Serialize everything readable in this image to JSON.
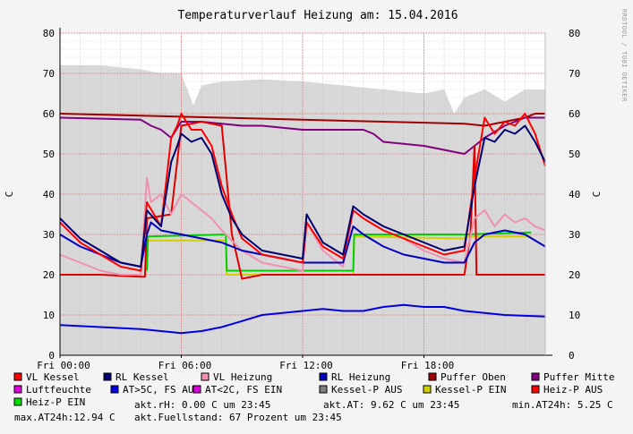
{
  "chart_data": {
    "type": "line",
    "title": "Temperaturverlauf Heizung am: 15.04.2016",
    "ylabel_left": "C",
    "ylabel_right": "C",
    "watermark": "RRDTOOL / TOBI OETIKER",
    "ylim": [
      0,
      80
    ],
    "y_ticks": [
      "0",
      "10",
      "20",
      "30",
      "40",
      "50",
      "60",
      "70",
      "80"
    ],
    "xlim_hours": [
      0,
      24
    ],
    "x_ticks": [
      {
        "h": 0,
        "label": "Fri 00:00"
      },
      {
        "h": 6,
        "label": "Fri 06:00"
      },
      {
        "h": 12,
        "label": "Fri 12:00"
      },
      {
        "h": 18,
        "label": "Fri 18:00"
      }
    ],
    "area": {
      "name": "Luftfeuchte",
      "color": "#d8d8d8",
      "x": [
        0,
        1,
        2,
        3,
        4,
        5,
        6,
        6.3,
        6.6,
        7,
        8,
        10,
        12,
        14,
        16,
        18,
        19,
        19.5,
        20,
        21,
        22,
        23,
        24
      ],
      "y": [
        72,
        72,
        72,
        71.5,
        71,
        70,
        70,
        66,
        62,
        67,
        68,
        68.5,
        68,
        67,
        66,
        65,
        66,
        60,
        64,
        66,
        63,
        66,
        66
      ]
    },
    "series": [
      {
        "name": "Puffer Oben",
        "color": "#a00000",
        "width": 2,
        "x": [
          0,
          4,
          8,
          12,
          16,
          20,
          21,
          22,
          23,
          23.5,
          24
        ],
        "y": [
          60,
          59.5,
          59,
          58.5,
          58,
          57.5,
          57,
          58,
          59,
          60,
          60
        ]
      },
      {
        "name": "Puffer Mitte",
        "color": "#800080",
        "width": 2,
        "x": [
          0,
          4,
          4.5,
          5,
          5.5,
          6,
          7,
          8,
          9,
          10,
          12,
          14,
          15,
          15.5,
          16,
          18,
          20,
          20.5,
          21,
          22,
          23,
          24
        ],
        "y": [
          59,
          58.5,
          57,
          56,
          54,
          58,
          58,
          57.5,
          57,
          57,
          56,
          56,
          56,
          55,
          53,
          52,
          50,
          52,
          54,
          57,
          59,
          59
        ]
      },
      {
        "name": "Kessel-P EIN",
        "color": "#d0d000",
        "width": 2,
        "x": [
          4.3,
          4.35,
          8.2,
          8.25,
          14.5,
          14.55,
          20,
          20.05,
          23.3
        ],
        "y": [
          21,
          28.5,
          28.5,
          20,
          20,
          29.5,
          29,
          29.5,
          29.5
        ]
      },
      {
        "name": "Heiz-P EIN",
        "color": "#00d000",
        "width": 2,
        "x": [
          4.3,
          4.35,
          8.2,
          8.25,
          14.5,
          14.55,
          20,
          20.05,
          23.3
        ],
        "y": [
          21,
          29.5,
          30,
          21,
          21,
          30,
          30,
          30,
          30.5
        ]
      },
      {
        "name": "Heiz-P AUS",
        "color": "#e00000",
        "width": 2,
        "x": [
          0,
          2,
          4,
          4.2,
          4.3,
          5.5,
          6,
          7,
          8,
          8.5,
          9,
          10,
          12,
          14,
          15,
          15.5,
          16,
          18,
          20,
          20.3,
          20.5,
          20.6,
          23.5,
          24
        ],
        "y": [
          20,
          20,
          19.5,
          19.5,
          34,
          35,
          57,
          58,
          57,
          30,
          19,
          20,
          20,
          20,
          20,
          20,
          20,
          20,
          20,
          30,
          52,
          20,
          20,
          20
        ]
      },
      {
        "name": "VL Heizung",
        "color": "#f090b0",
        "width": 2,
        "x": [
          0,
          1,
          2,
          3,
          4,
          4.3,
          4.5,
          5,
          5.5,
          6,
          6.5,
          7,
          7.5,
          8,
          9,
          10,
          11,
          12,
          12.2,
          13,
          14,
          14.5,
          15,
          16,
          17,
          18,
          19,
          20,
          20.5,
          21,
          21.5,
          22,
          22.5,
          23,
          23.5,
          24
        ],
        "y": [
          25,
          23,
          21,
          20,
          20,
          44,
          38,
          40,
          35,
          40,
          38,
          36,
          34,
          31,
          26,
          23,
          22,
          21,
          33,
          26,
          22,
          36,
          34,
          31,
          29,
          26,
          24,
          23,
          34,
          36,
          32,
          35,
          33,
          34,
          32,
          31
        ]
      },
      {
        "name": "RL Heizung",
        "color": "#0000c0",
        "width": 2,
        "x": [
          0,
          1,
          2,
          3,
          4,
          4.3,
          4.5,
          5,
          6,
          7,
          8,
          8.5,
          9,
          10,
          11,
          12,
          13,
          14,
          14.5,
          15,
          16,
          17,
          18,
          19,
          20,
          20.5,
          21,
          22,
          23,
          24
        ],
        "y": [
          30,
          27,
          25,
          23,
          22,
          30,
          33,
          31,
          30,
          29,
          28,
          27,
          26,
          25,
          24,
          23,
          23,
          23,
          32,
          30,
          27,
          25,
          24,
          23,
          23,
          28,
          30,
          31,
          30,
          27
        ]
      },
      {
        "name": "VL Kessel",
        "color": "#ff0000",
        "width": 2,
        "x": [
          0,
          1,
          2,
          3,
          4,
          4.3,
          5,
          5.5,
          5.8,
          6,
          6.5,
          7,
          7.5,
          8,
          8.5,
          9,
          10,
          11,
          12,
          12.2,
          13,
          14,
          14.5,
          15,
          16,
          17,
          18,
          19,
          20,
          20.5,
          21,
          21.5,
          22,
          22.5,
          23,
          23.5,
          24
        ],
        "y": [
          33,
          28,
          25,
          22,
          21,
          38,
          32,
          54,
          57,
          60,
          56,
          56,
          52,
          42,
          35,
          29,
          25,
          24,
          23,
          33,
          27,
          24,
          36,
          34,
          31,
          29,
          27,
          25,
          26,
          44,
          59,
          55,
          58,
          57,
          60,
          55,
          47
        ]
      },
      {
        "name": "RL Kessel",
        "color": "#000070",
        "width": 2,
        "x": [
          0,
          1,
          2,
          3,
          4,
          4.3,
          5,
          5.5,
          5.8,
          6,
          6.5,
          7,
          7.5,
          8,
          8.5,
          9,
          10,
          11,
          12,
          12.2,
          13,
          14,
          14.5,
          15,
          16,
          17,
          18,
          19,
          20,
          20.5,
          21,
          21.5,
          22,
          22.5,
          23,
          23.5,
          24
        ],
        "y": [
          34,
          29,
          26,
          23,
          22,
          36,
          32,
          48,
          52,
          55,
          53,
          54,
          50,
          40,
          34,
          30,
          26,
          25,
          24,
          35,
          28,
          25,
          37,
          35,
          32,
          30,
          28,
          26,
          27,
          42,
          54,
          53,
          56,
          55,
          57,
          53,
          48
        ]
      },
      {
        "name": "AT>5C, FS AUS",
        "color": "#0000e0",
        "width": 2,
        "x": [
          0,
          2,
          4,
          5,
          6,
          7,
          8,
          9,
          10,
          11,
          12,
          13,
          14,
          15,
          16,
          17,
          18,
          19,
          20,
          21,
          22,
          23,
          24
        ],
        "y": [
          7.5,
          7,
          6.5,
          6,
          5.5,
          6,
          7,
          8.5,
          10,
          10.5,
          11,
          11.5,
          11,
          11,
          12,
          12.5,
          12,
          12,
          11,
          10.5,
          10,
          9.8,
          9.6
        ]
      }
    ],
    "legend": [
      {
        "label": "VL Kessel",
        "color": "#ff0000"
      },
      {
        "label": "RL Kessel",
        "color": "#000070"
      },
      {
        "label": "VL Heizung",
        "color": "#f090b0"
      },
      {
        "label": "RL Heizung",
        "color": "#0000c0"
      },
      {
        "label": "Puffer Oben",
        "color": "#a00000"
      },
      {
        "label": "Puffer Mitte",
        "color": "#800080"
      },
      {
        "label": "Luftfeuchte",
        "color": "#e000e0"
      },
      {
        "label": "AT>5C, FS AUS",
        "color": "#0000e0"
      },
      {
        "label": "AT<2C, FS EIN",
        "color": "#e000e0"
      },
      {
        "label": "Kessel-P AUS",
        "color": "#808080"
      },
      {
        "label": "Kessel-P EIN",
        "color": "#d0d000"
      },
      {
        "label": "Heiz-P AUS",
        "color": "#ff0000"
      },
      {
        "label": "Heiz-P EIN",
        "color": "#00e000"
      }
    ],
    "info": {
      "line1_a": "akt.rH: 0.00 C um 23:45",
      "line1_b": "akt.AT: 9.62 C um 23:45",
      "line1_c": "min.AT24h: 5.25 C",
      "line2_a": "max.AT24h:12.94 C",
      "line2_b": "akt.Fuellstand:   67 Prozent um 23:45"
    }
  }
}
